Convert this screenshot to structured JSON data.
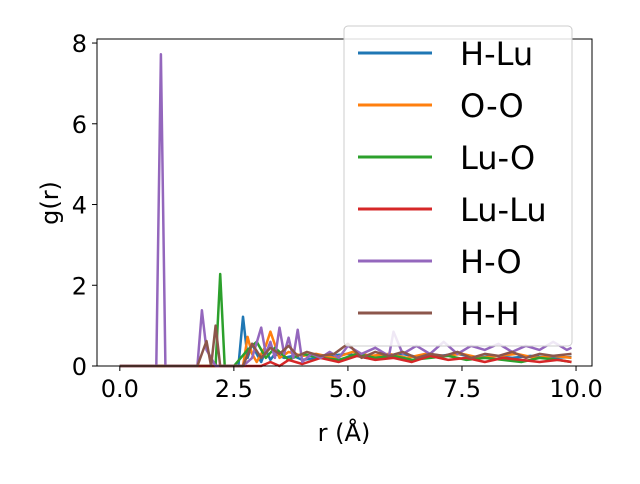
{
  "chart_data": {
    "type": "line",
    "title": "",
    "xlabel": "r (Å)",
    "ylabel": "g(r)",
    "xlim": [
      -0.5,
      10.35
    ],
    "ylim": [
      0,
      8.1
    ],
    "xticks": [
      0.0,
      2.5,
      5.0,
      7.5,
      10.0
    ],
    "xtick_labels": [
      "0.0",
      "2.5",
      "5.0",
      "7.5",
      "10.0"
    ],
    "yticks": [
      0,
      2,
      4,
      6,
      8
    ],
    "ytick_labels": [
      "0",
      "2",
      "4",
      "6",
      "8"
    ],
    "grid": false,
    "legend": "top-right",
    "series": [
      {
        "name": "H-Lu",
        "color": "#1f77b4",
        "x": [
          0.0,
          2.4,
          2.6,
          2.7,
          2.8,
          2.9,
          3.0,
          3.1,
          3.2,
          3.3,
          3.4,
          3.6,
          3.8,
          4.0,
          4.3,
          4.6,
          5.0,
          5.4,
          5.8,
          6.2,
          6.6,
          7.0,
          7.4,
          7.8,
          8.2,
          8.6,
          9.0,
          9.4,
          9.9
        ],
        "y": [
          0.0,
          0.0,
          0.0,
          1.22,
          0.2,
          0.55,
          0.3,
          0.1,
          0.4,
          0.15,
          0.3,
          0.2,
          0.25,
          0.15,
          0.2,
          0.25,
          0.3,
          0.2,
          0.25,
          0.3,
          0.2,
          0.25,
          0.3,
          0.2,
          0.25,
          0.2,
          0.25,
          0.2,
          0.22
        ]
      },
      {
        "name": "O-O",
        "color": "#ff7f0e",
        "x": [
          0.0,
          2.5,
          2.7,
          2.8,
          2.9,
          3.0,
          3.2,
          3.3,
          3.5,
          3.7,
          4.0,
          4.3,
          4.7,
          5.1,
          5.5,
          5.9,
          6.3,
          6.7,
          7.1,
          7.5,
          7.9,
          8.3,
          8.7,
          9.1,
          9.5,
          9.9
        ],
        "y": [
          0.0,
          0.0,
          0.0,
          0.72,
          0.3,
          0.1,
          0.5,
          0.85,
          0.2,
          0.35,
          0.25,
          0.3,
          0.2,
          0.35,
          0.25,
          0.3,
          0.2,
          0.3,
          0.25,
          0.3,
          0.2,
          0.25,
          0.3,
          0.2,
          0.25,
          0.2
        ]
      },
      {
        "name": "Lu-O",
        "color": "#2ca02c",
        "x": [
          0.0,
          1.9,
          2.1,
          2.2,
          2.3,
          2.5,
          2.8,
          3.0,
          3.2,
          3.4,
          3.7,
          4.0,
          4.4,
          4.8,
          5.2,
          5.6,
          6.0,
          6.4,
          6.8,
          7.2,
          7.6,
          8.0,
          8.4,
          8.8,
          9.2,
          9.6,
          9.9
        ],
        "y": [
          0.0,
          0.0,
          0.0,
          2.28,
          0.0,
          0.0,
          0.4,
          0.6,
          0.2,
          0.45,
          0.15,
          0.3,
          0.2,
          0.15,
          0.3,
          0.2,
          0.25,
          0.15,
          0.2,
          0.25,
          0.15,
          0.2,
          0.15,
          0.1,
          0.2,
          0.15,
          0.1
        ]
      },
      {
        "name": "Lu-Lu",
        "color": "#d62728",
        "x": [
          0.0,
          3.1,
          3.3,
          3.5,
          3.7,
          4.0,
          4.4,
          4.8,
          5.2,
          5.6,
          6.0,
          6.4,
          6.8,
          7.2,
          7.6,
          8.0,
          8.4,
          8.8,
          9.2,
          9.6,
          9.9
        ],
        "y": [
          0.0,
          0.0,
          0.1,
          0.0,
          0.15,
          0.05,
          0.2,
          0.1,
          0.25,
          0.15,
          0.2,
          0.1,
          0.25,
          0.15,
          0.2,
          0.1,
          0.2,
          0.15,
          0.1,
          0.15,
          0.1
        ]
      },
      {
        "name": "H-O",
        "color": "#9467bd",
        "x": [
          0.0,
          0.8,
          0.9,
          1.0,
          1.7,
          1.8,
          1.9,
          2.0,
          2.1,
          2.2,
          2.7,
          2.9,
          3.1,
          3.2,
          3.3,
          3.4,
          3.5,
          3.6,
          3.7,
          3.8,
          3.9,
          4.0,
          4.2,
          4.4,
          4.6,
          4.8,
          5.0,
          5.3,
          5.6,
          5.9,
          6.0,
          6.2,
          6.5,
          6.8,
          7.1,
          7.4,
          7.7,
          8.0,
          8.3,
          8.6,
          8.9,
          9.2,
          9.5,
          9.8,
          9.9
        ],
        "y": [
          0.0,
          0.0,
          7.72,
          0.0,
          0.0,
          1.38,
          0.4,
          0.2,
          0.0,
          0.0,
          0.0,
          0.2,
          0.95,
          0.3,
          0.6,
          0.2,
          0.95,
          0.3,
          0.7,
          0.2,
          0.9,
          0.1,
          0.3,
          0.2,
          0.35,
          0.2,
          0.5,
          0.3,
          0.45,
          0.25,
          0.85,
          0.3,
          0.5,
          0.3,
          0.6,
          0.3,
          0.5,
          0.4,
          0.55,
          0.35,
          0.5,
          0.4,
          0.6,
          0.4,
          0.45
        ]
      },
      {
        "name": "H-H",
        "color": "#8c564b",
        "x": [
          0.0,
          1.7,
          1.9,
          2.0,
          2.1,
          2.2,
          2.3,
          2.7,
          2.9,
          3.1,
          3.3,
          3.5,
          3.7,
          3.9,
          4.1,
          4.4,
          4.7,
          5.0,
          5.3,
          5.6,
          5.9,
          6.2,
          6.5,
          6.8,
          7.1,
          7.4,
          7.7,
          8.0,
          8.3,
          8.6,
          8.9,
          9.2,
          9.5,
          9.9
        ],
        "y": [
          0.0,
          0.0,
          0.62,
          0.0,
          1.0,
          0.0,
          0.0,
          0.0,
          0.55,
          0.2,
          0.45,
          0.3,
          0.5,
          0.25,
          0.35,
          0.25,
          0.3,
          0.55,
          0.2,
          0.35,
          0.25,
          0.35,
          0.2,
          0.3,
          0.25,
          0.35,
          0.2,
          0.3,
          0.25,
          0.35,
          0.2,
          0.3,
          0.25,
          0.3
        ]
      }
    ]
  }
}
